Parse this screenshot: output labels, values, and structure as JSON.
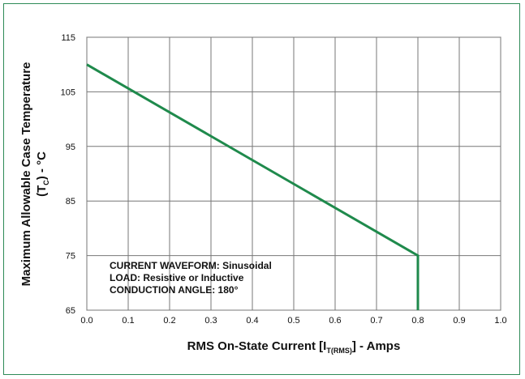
{
  "colors": {
    "frame": "#2e8b57",
    "line": "#1f8a4c",
    "grid": "#777777"
  },
  "chart_data": {
    "type": "line",
    "title": "",
    "xlabel": {
      "prefix": "RMS On-State Current [I",
      "subscript": "T(RMS)",
      "suffix": "] - Amps"
    },
    "ylabel": {
      "line1": "Maximum Allowable Case Temperature",
      "line2_prefix": "(T",
      "line2_subscript": "C",
      "line2_suffix": ") - °C"
    },
    "xlim": [
      0.0,
      1.0
    ],
    "ylim": [
      65,
      115
    ],
    "x_ticks": [
      "0.0",
      "0.1",
      "0.2",
      "0.3",
      "0.4",
      "0.5",
      "0.6",
      "0.7",
      "0.8",
      "0.9",
      "1.0"
    ],
    "y_ticks": [
      "65",
      "75",
      "85",
      "95",
      "105",
      "115"
    ],
    "grid": true,
    "series": [
      {
        "points": [
          [
            0.0,
            110
          ],
          [
            0.8,
            75
          ],
          [
            0.8,
            65
          ]
        ]
      }
    ],
    "annotations": [
      "CURRENT WAVEFORM: Sinusoidal",
      "LOAD: Resistive or Inductive",
      "CONDUCTION ANGLE: 180°"
    ]
  }
}
